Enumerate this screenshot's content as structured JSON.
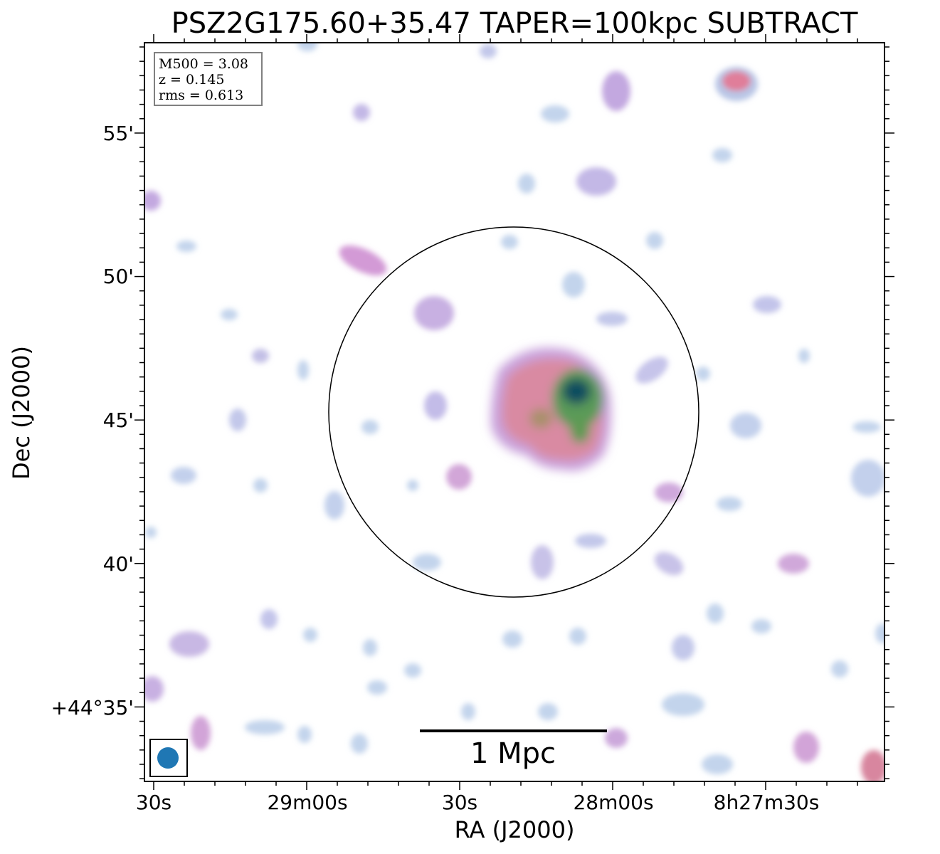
{
  "title": "PSZ2G175.60+35.47 TAPER=100kpc SUBTRACT",
  "xlabel": "RA (J2000)",
  "ylabel": "Dec (J2000)",
  "x_ticks": [
    "30s",
    "29m00s",
    "30s",
    "28m00s",
    "8h27m30s"
  ],
  "y_ticks": [
    "55'",
    "50'",
    "45'",
    "40'",
    "+44°35'"
  ],
  "info_box": [
    "M500 = 3.08",
    "z = 0.145",
    "rms = 0.613"
  ],
  "scalebar_label": "1 Mpc",
  "colors": {
    "beam": "#1f77b4",
    "frame": "#000000",
    "info_border": "#808080"
  }
}
